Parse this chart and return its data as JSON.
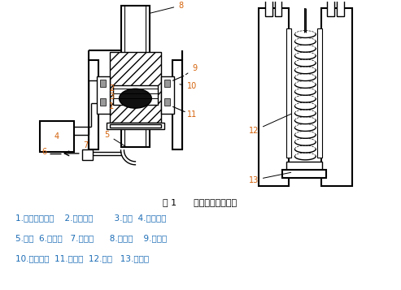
{
  "title": "图 1      电渣焊过程示意图",
  "caption_line1": "1.水冷成形滑装    2.金属熔池        3.渣池  4.焊接电源",
  "caption_line2": "5.焊丝  6.送丝轮   7.导电杆      8.引出板    9.出水管",
  "caption_line3": "10.金属熔滴  11.进水管  12.焊缝   13.起弧槽",
  "bg_color": "#ffffff",
  "line_color": "#000000",
  "label_color": "#d4620a",
  "title_color": "#000000",
  "caption_color": "#1a6bb5"
}
